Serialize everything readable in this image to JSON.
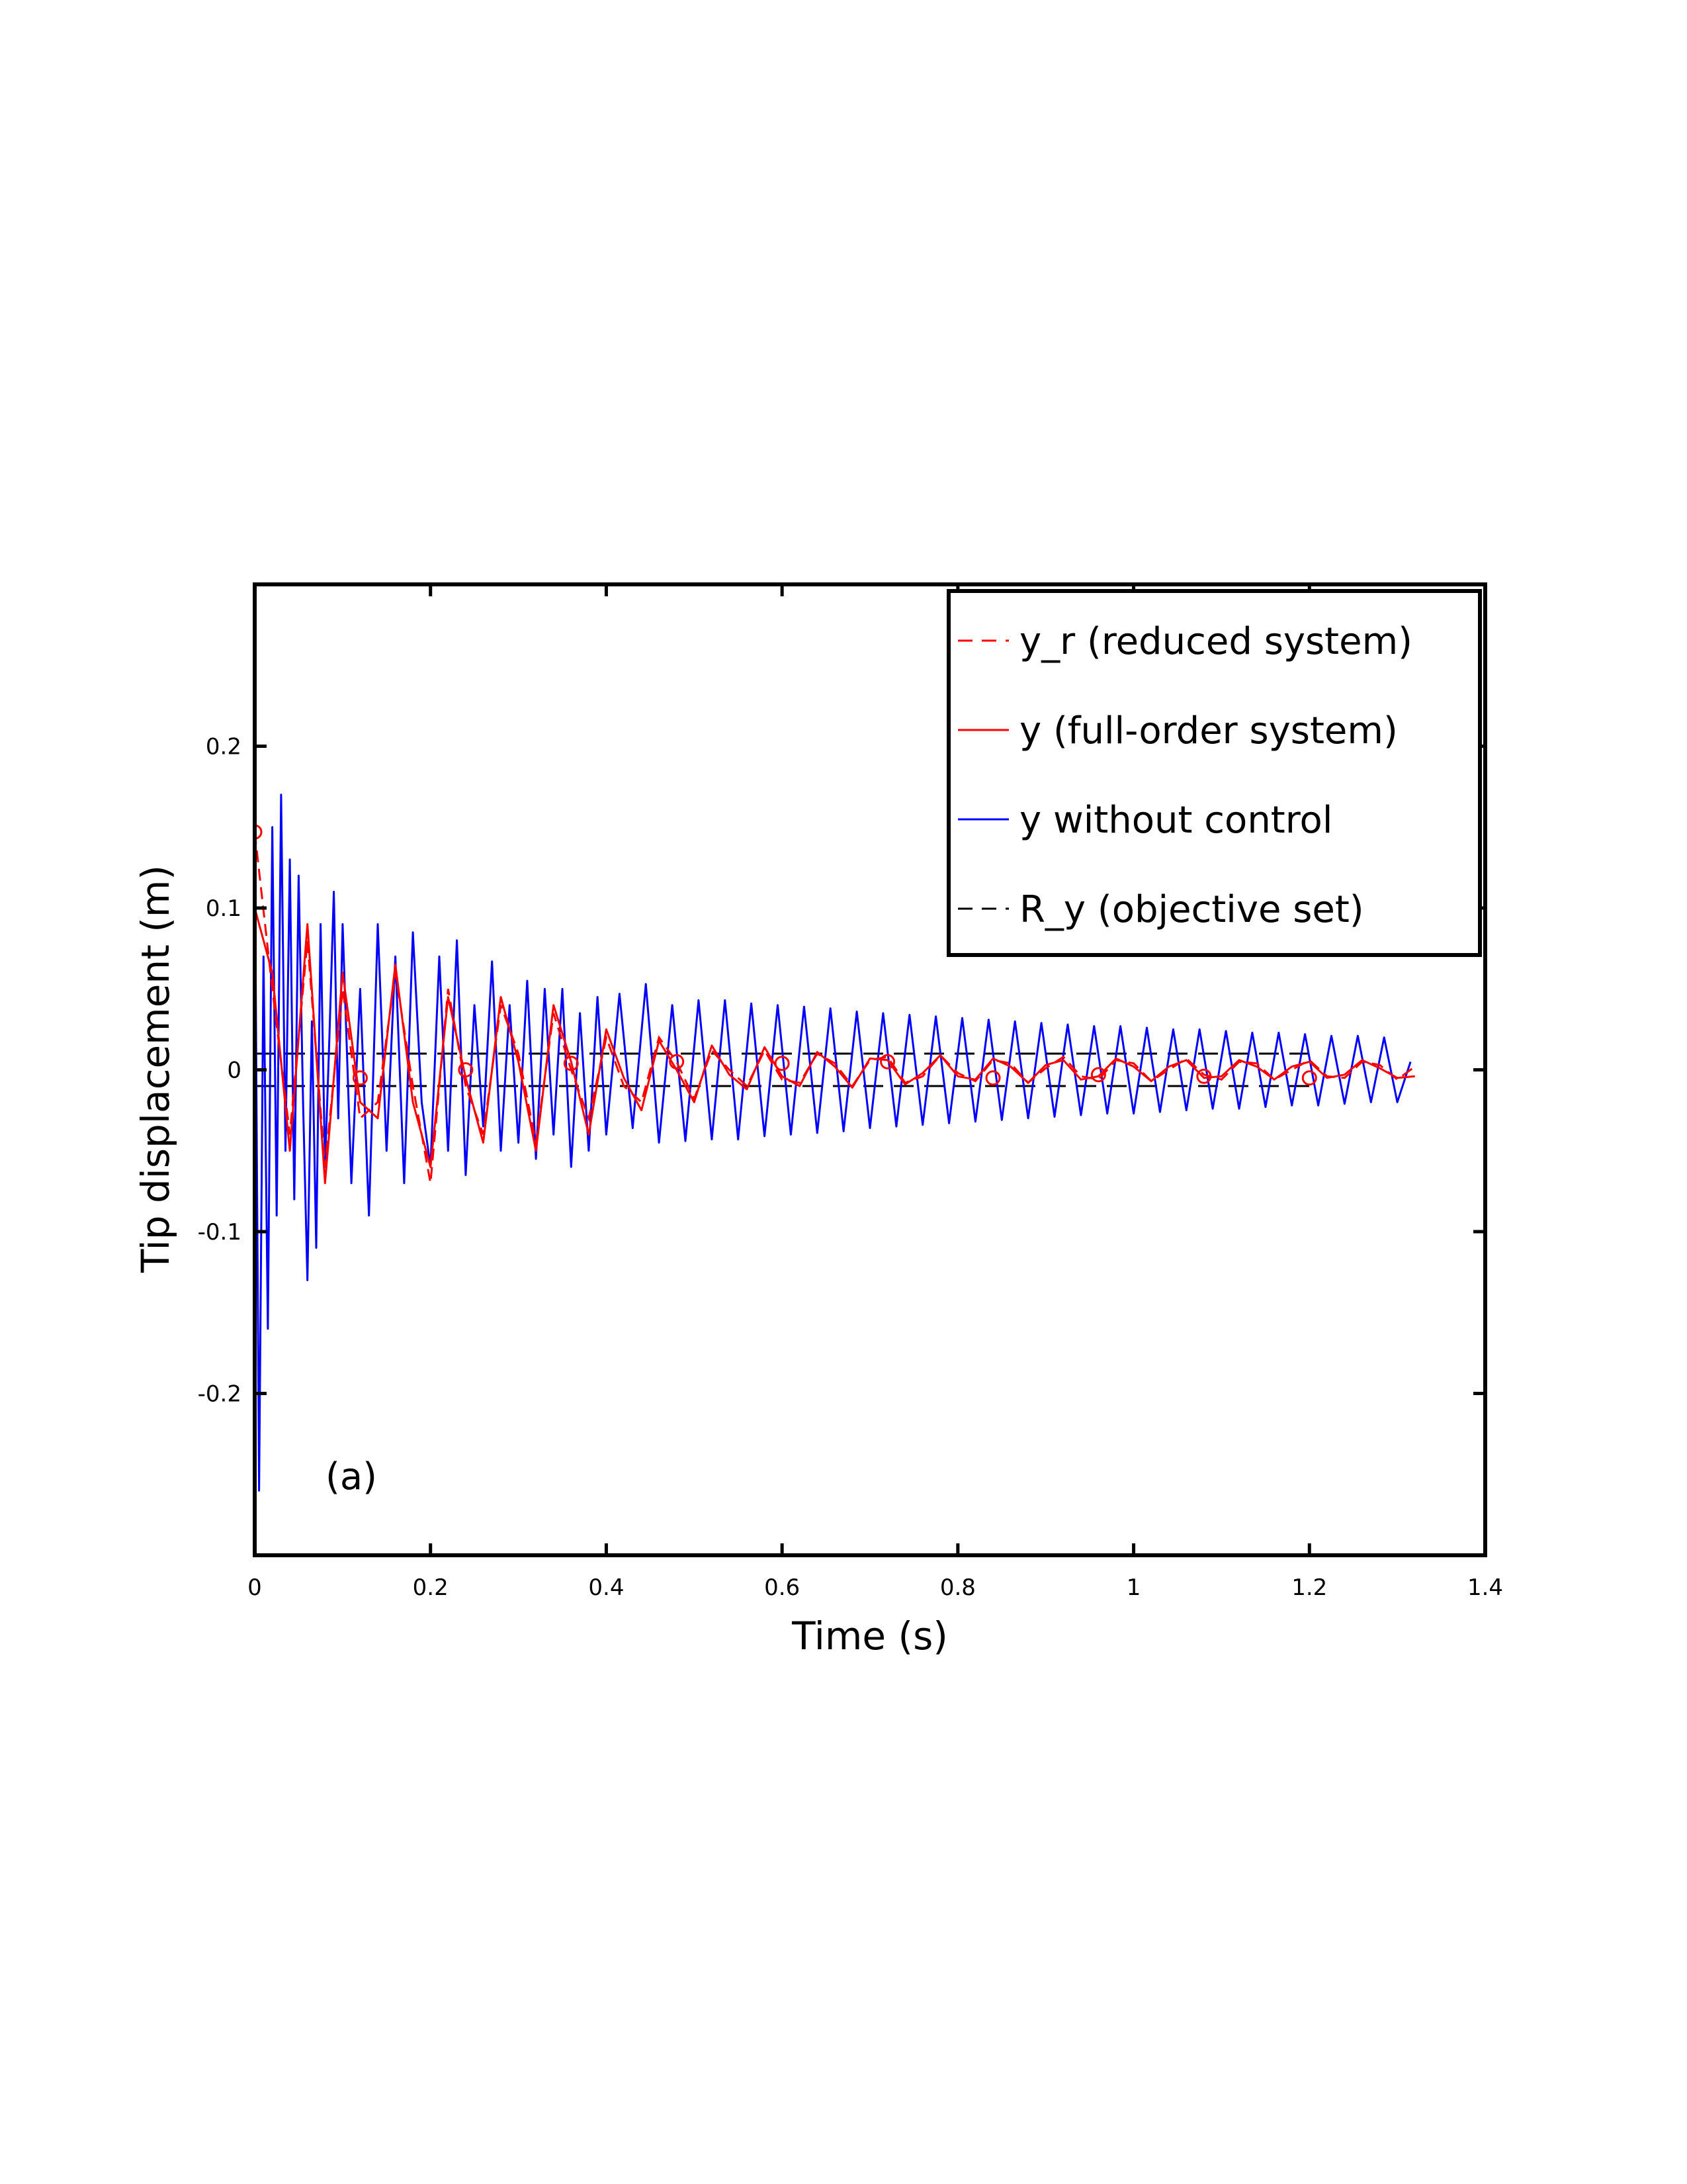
{
  "chart_data": {
    "type": "line",
    "title": "",
    "xlabel": "Time (s)",
    "ylabel": "Tip displacement (m)",
    "xlim": [
      0,
      1.4
    ],
    "ylim": [
      -0.3,
      0.3
    ],
    "xticks": [
      0,
      0.2,
      0.4,
      0.6,
      0.8,
      1,
      1.2,
      1.4
    ],
    "xtick_labels": [
      "0",
      "0.2",
      "0.4",
      "0.6",
      "0.8",
      "1",
      "1.2",
      "1.4"
    ],
    "yticks": [
      -0.2,
      -0.1,
      0,
      0.1,
      0.2
    ],
    "ytick_labels": [
      "-0.2",
      "-0.1",
      "0",
      "0.1",
      "0.2"
    ],
    "grid": false,
    "legend_position": "top-right",
    "annotation": "(a)",
    "series": [
      {
        "name": "y_r (reduced system)",
        "color": "#ff0000",
        "style": "dashed",
        "marker": "circle",
        "marker_x": [
          0,
          0.12,
          0.24,
          0.36,
          0.48,
          0.6,
          0.72,
          0.84,
          0.96,
          1.08,
          1.2
        ],
        "marker_y": [
          0.147,
          -0.005,
          0.0,
          0.004,
          0.005,
          0.004,
          0.005,
          -0.005,
          -0.003,
          -0.004,
          -0.005
        ],
        "x": [
          0,
          0.02,
          0.04,
          0.06,
          0.08,
          0.1,
          0.12,
          0.14,
          0.16,
          0.18,
          0.2,
          0.22,
          0.24,
          0.26,
          0.28,
          0.3,
          0.32,
          0.34,
          0.36,
          0.38,
          0.4,
          0.42,
          0.44,
          0.46,
          0.48,
          0.5,
          0.52,
          0.54,
          0.56,
          0.58,
          0.6,
          0.62,
          0.64,
          0.66,
          0.68,
          0.7,
          0.72,
          0.74,
          0.76,
          0.78,
          0.8,
          0.82,
          0.84,
          0.86,
          0.88,
          0.9,
          0.92,
          0.94,
          0.96,
          0.98,
          1.0,
          1.02,
          1.04,
          1.06,
          1.08,
          1.1,
          1.12,
          1.14,
          1.16,
          1.18,
          1.2,
          1.22,
          1.24,
          1.26,
          1.28,
          1.3,
          1.32
        ],
        "y": [
          0.147,
          0.05,
          -0.04,
          0.08,
          -0.06,
          0.05,
          -0.03,
          -0.02,
          0.06,
          -0.01,
          -0.07,
          0.05,
          -0.01,
          -0.04,
          0.04,
          0.01,
          -0.045,
          0.035,
          0.0,
          -0.03,
          0.02,
          -0.01,
          -0.02,
          0.02,
          0.005,
          -0.018,
          0.012,
          0.0,
          -0.01,
          0.012,
          -0.006,
          -0.008,
          0.01,
          0.004,
          -0.01,
          0.006,
          0.008,
          -0.008,
          -0.004,
          0.009,
          -0.002,
          -0.007,
          0.006,
          0.004,
          -0.008,
          0.001,
          0.008,
          -0.004,
          -0.006,
          0.006,
          0.004,
          -0.007,
          0.0,
          0.007,
          -0.003,
          -0.006,
          0.005,
          0.004,
          -0.006,
          0.0,
          0.006,
          -0.004,
          -0.005,
          0.005,
          0.003,
          -0.006,
          0.002
        ]
      },
      {
        "name": "y (full-order system)",
        "color": "#ff0000",
        "style": "solid",
        "x": [
          0,
          0.02,
          0.04,
          0.06,
          0.08,
          0.1,
          0.12,
          0.14,
          0.16,
          0.18,
          0.2,
          0.22,
          0.24,
          0.26,
          0.28,
          0.3,
          0.32,
          0.34,
          0.36,
          0.38,
          0.4,
          0.42,
          0.44,
          0.46,
          0.48,
          0.5,
          0.52,
          0.54,
          0.56,
          0.58,
          0.6,
          0.62,
          0.64,
          0.66,
          0.68,
          0.7,
          0.72,
          0.74,
          0.76,
          0.78,
          0.8,
          0.82,
          0.84,
          0.86,
          0.88,
          0.9,
          0.92,
          0.94,
          0.96,
          0.98,
          1.0,
          1.02,
          1.04,
          1.06,
          1.08,
          1.1,
          1.12,
          1.14,
          1.16,
          1.18,
          1.2,
          1.22,
          1.24,
          1.26,
          1.28,
          1.3,
          1.32
        ],
        "y": [
          0.1,
          0.06,
          -0.05,
          0.09,
          -0.07,
          0.06,
          -0.02,
          -0.03,
          0.065,
          -0.02,
          -0.06,
          0.045,
          -0.005,
          -0.045,
          0.045,
          0.005,
          -0.05,
          0.04,
          0.005,
          -0.04,
          0.025,
          -0.005,
          -0.025,
          0.018,
          0.0,
          -0.02,
          0.015,
          -0.003,
          -0.012,
          0.014,
          -0.004,
          -0.01,
          0.011,
          0.002,
          -0.011,
          0.007,
          0.006,
          -0.009,
          -0.002,
          0.009,
          -0.004,
          -0.006,
          0.007,
          0.002,
          -0.008,
          0.003,
          0.006,
          -0.006,
          -0.004,
          0.007,
          0.002,
          -0.007,
          0.002,
          0.006,
          -0.005,
          -0.004,
          0.006,
          0.002,
          -0.006,
          0.002,
          0.005,
          -0.005,
          -0.003,
          0.006,
          0.001,
          -0.005,
          -0.004
        ]
      },
      {
        "name": "y without control",
        "color": "#0000ff",
        "style": "solid",
        "x": [
          0,
          0.005,
          0.01,
          0.015,
          0.02,
          0.025,
          0.03,
          0.035,
          0.04,
          0.045,
          0.05,
          0.055,
          0.06,
          0.065,
          0.07,
          0.075,
          0.08,
          0.085,
          0.09,
          0.095,
          0.1,
          0.11,
          0.12,
          0.13,
          0.14,
          0.15,
          0.16,
          0.17,
          0.18,
          0.19,
          0.2,
          0.21,
          0.22,
          0.23,
          0.24,
          0.25,
          0.26,
          0.27,
          0.28,
          0.29,
          0.3,
          0.31,
          0.32,
          0.33,
          0.34,
          0.35,
          0.36,
          0.37,
          0.38,
          0.39,
          0.4,
          0.415,
          0.43,
          0.445,
          0.46,
          0.475,
          0.49,
          0.505,
          0.52,
          0.535,
          0.55,
          0.565,
          0.58,
          0.595,
          0.61,
          0.625,
          0.64,
          0.655,
          0.67,
          0.685,
          0.7,
          0.715,
          0.73,
          0.745,
          0.76,
          0.775,
          0.79,
          0.805,
          0.82,
          0.835,
          0.85,
          0.865,
          0.88,
          0.895,
          0.91,
          0.925,
          0.94,
          0.955,
          0.97,
          0.985,
          1.0,
          1.015,
          1.03,
          1.045,
          1.06,
          1.075,
          1.09,
          1.105,
          1.12,
          1.135,
          1.15,
          1.165,
          1.18,
          1.195,
          1.21,
          1.225,
          1.24,
          1.255,
          1.27,
          1.285,
          1.3,
          1.315
        ],
        "y": [
          0.15,
          -0.26,
          0.07,
          -0.16,
          0.15,
          -0.09,
          0.17,
          -0.05,
          0.13,
          -0.08,
          0.12,
          -0.02,
          -0.13,
          0.03,
          -0.11,
          0.09,
          -0.06,
          0.02,
          0.11,
          -0.03,
          0.09,
          -0.07,
          0.05,
          -0.09,
          0.09,
          -0.05,
          0.07,
          -0.07,
          0.085,
          -0.02,
          -0.06,
          0.07,
          -0.05,
          0.08,
          -0.065,
          0.04,
          -0.035,
          0.067,
          -0.05,
          0.04,
          -0.045,
          0.055,
          -0.055,
          0.05,
          -0.04,
          0.05,
          -0.06,
          0.035,
          -0.05,
          0.045,
          -0.04,
          0.047,
          -0.036,
          0.053,
          -0.045,
          0.04,
          -0.044,
          0.043,
          -0.043,
          0.043,
          -0.043,
          0.041,
          -0.041,
          0.04,
          -0.04,
          0.039,
          -0.039,
          0.038,
          -0.038,
          0.036,
          -0.036,
          0.035,
          -0.035,
          0.034,
          -0.034,
          0.033,
          -0.033,
          0.032,
          -0.032,
          0.031,
          -0.031,
          0.03,
          -0.03,
          0.029,
          -0.029,
          0.028,
          -0.028,
          0.027,
          -0.027,
          0.027,
          -0.027,
          0.026,
          -0.026,
          0.025,
          -0.025,
          0.025,
          -0.024,
          0.024,
          -0.024,
          0.023,
          -0.023,
          0.023,
          -0.022,
          0.022,
          -0.022,
          0.021,
          -0.021,
          0.021,
          -0.02,
          0.02,
          -0.02,
          0.005
        ]
      },
      {
        "name": "R_y (objective set)",
        "color": "#000000",
        "style": "dashed",
        "x": [
          0,
          1.2
        ],
        "y_upper": 0.01,
        "y_lower": -0.01
      }
    ]
  }
}
